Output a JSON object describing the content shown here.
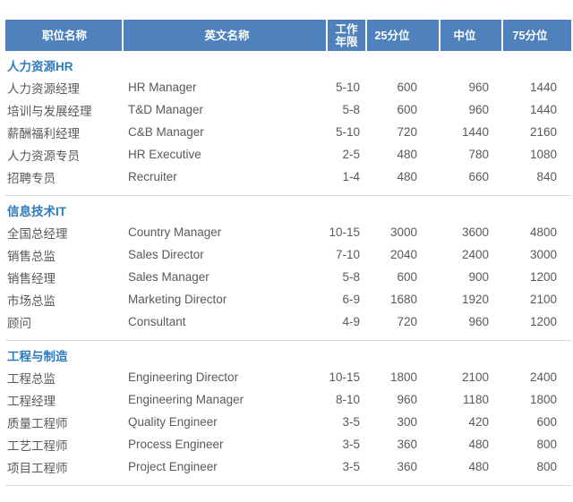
{
  "colors": {
    "header_bg": "#4f81bd",
    "header_text": "#ffffff",
    "section_title": "#2d7bbf",
    "body_text": "#595959",
    "separator": "#d9d9d9",
    "page_bg": "#ffffff"
  },
  "table": {
    "columns": [
      {
        "id": "position",
        "label": "职位名称"
      },
      {
        "id": "english",
        "label": "英文名称"
      },
      {
        "id": "years",
        "label": "工作年限"
      },
      {
        "id": "p25",
        "label": "25分位"
      },
      {
        "id": "median",
        "label": "中位"
      },
      {
        "id": "p75",
        "label": "75分位"
      }
    ],
    "sections": [
      {
        "title": "人力资源HR",
        "separator_above": false,
        "rows": [
          {
            "position": "人力资源经理",
            "english": "HR Manager",
            "years": "5-10",
            "p25": "600",
            "median": "960",
            "p75": "1440"
          },
          {
            "position": "培训与发展经理",
            "english": "T&D Manager",
            "years": "5-8",
            "p25": "600",
            "median": "960",
            "p75": "1440"
          },
          {
            "position": "薪酬福利经理",
            "english": "C&B Manager",
            "years": "5-10",
            "p25": "720",
            "median": "1440",
            "p75": "2160"
          },
          {
            "position": "人力资源专员",
            "english": "HR Executive",
            "years": "2-5",
            "p25": "480",
            "median": "780",
            "p75": "1080"
          },
          {
            "position": "招聘专员",
            "english": "Recruiter",
            "years": "1-4",
            "p25": "480",
            "median": "660",
            "p75": "840"
          }
        ]
      },
      {
        "title": "信息技术IT",
        "separator_above": true,
        "rows": [
          {
            "position": "全国总经理",
            "english": "Country Manager",
            "years": "10-15",
            "p25": "3000",
            "median": "3600",
            "p75": "4800"
          },
          {
            "position": "销售总监",
            "english": "Sales Director",
            "years": "7-10",
            "p25": "2040",
            "median": "2400",
            "p75": "3000"
          },
          {
            "position": "销售经理",
            "english": "Sales Manager",
            "years": "5-8",
            "p25": "600",
            "median": "900",
            "p75": "1200"
          },
          {
            "position": "市场总监",
            "english": "Marketing Director",
            "years": "6-9",
            "p25": "1680",
            "median": "1920",
            "p75": "2100"
          },
          {
            "position": "顾问",
            "english": "Consultant",
            "years": "4-9",
            "p25": "720",
            "median": "960",
            "p75": "1200"
          }
        ]
      },
      {
        "title": "工程与制造",
        "separator_above": true,
        "rows": [
          {
            "position": "工程总监",
            "english": "Engineering Director",
            "years": "10-15",
            "p25": "1800",
            "median": "2100",
            "p75": "2400"
          },
          {
            "position": "工程经理",
            "english": "Engineering Manager",
            "years": "8-10",
            "p25": "960",
            "median": "1180",
            "p75": "1800"
          },
          {
            "position": "质量工程师",
            "english": "Quality Engineer",
            "years": "3-5",
            "p25": "300",
            "median": "420",
            "p75": "600"
          },
          {
            "position": "工艺工程师",
            "english": "Process Engineer",
            "years": "3-5",
            "p25": "360",
            "median": "480",
            "p75": "800"
          },
          {
            "position": "项目工程师",
            "english": "Project Engineer",
            "years": "3-5",
            "p25": "360",
            "median": "480",
            "p75": "800"
          }
        ]
      }
    ]
  }
}
